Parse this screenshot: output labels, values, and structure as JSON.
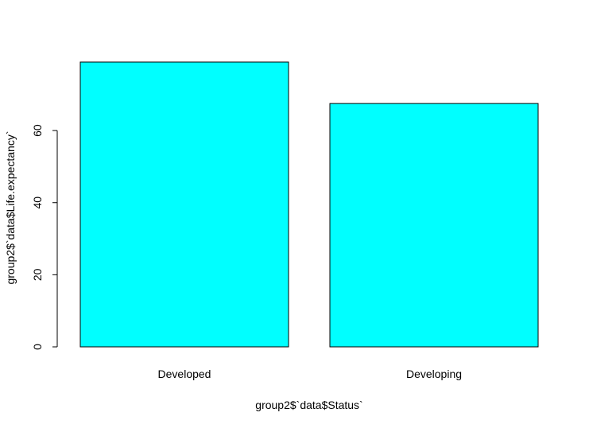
{
  "chart_data": {
    "type": "bar",
    "categories": [
      "Developed",
      "Developing"
    ],
    "values": [
      79,
      67.5
    ],
    "xlabel": "group2$`data$Status`",
    "ylabel": "group2$`data$Life.expectancy`",
    "ylim": [
      0,
      79
    ],
    "yticks": [
      0,
      20,
      40,
      60
    ],
    "bar_color": "#00ffff",
    "grid": false,
    "legend": "none"
  }
}
